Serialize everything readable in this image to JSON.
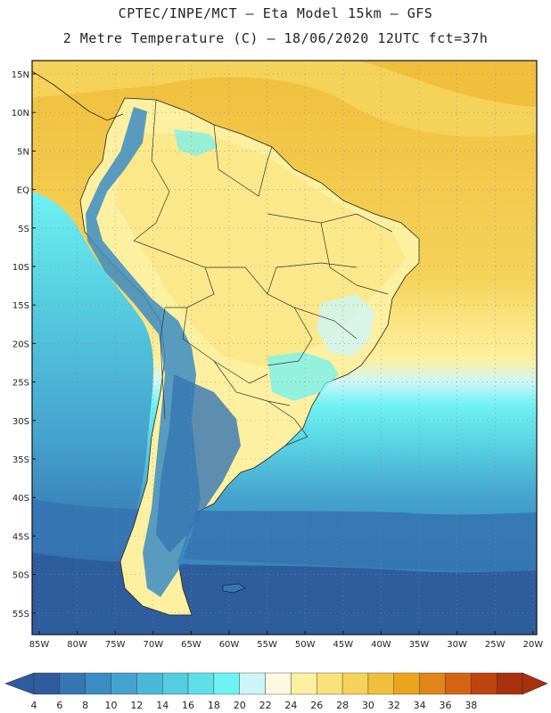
{
  "header": {
    "line1": "CPTEC/INPE/MCT  –   Eta Model 15km  –  GFS",
    "line2": "2 Metre Temperature (C) – 18/06/2020 12UTC fct=37h"
  },
  "map": {
    "lat_labels": [
      "15N",
      "10N",
      "5N",
      "EQ",
      "5S",
      "10S",
      "15S",
      "20S",
      "25S",
      "30S",
      "35S",
      "40S",
      "45S",
      "50S",
      "55S"
    ],
    "lon_labels": [
      "85W",
      "80W",
      "75W",
      "70W",
      "65W",
      "60W",
      "55W",
      "50W",
      "45W",
      "40W",
      "35W",
      "30W",
      "25W",
      "20W"
    ]
  },
  "colorbar": {
    "labels": [
      "4",
      "6",
      "8",
      "10",
      "12",
      "14",
      "16",
      "18",
      "20",
      "22",
      "24",
      "26",
      "28",
      "30",
      "32",
      "34",
      "36",
      "38"
    ],
    "colors": [
      "#2e5d9e",
      "#3576b3",
      "#3b8cc4",
      "#45a3cf",
      "#4cb8d8",
      "#55cde0",
      "#5ee0e8",
      "#6ff2f2",
      "#cdf5f8",
      "#fdf8e0",
      "#fdf0a0",
      "#f9e27a",
      "#f5d25a",
      "#f0bf3c",
      "#eaa41e",
      "#e0861a",
      "#d46414",
      "#c04410",
      "#a8300c"
    ],
    "under_color": "#2e5d9e",
    "over_color": "#a8300c"
  }
}
